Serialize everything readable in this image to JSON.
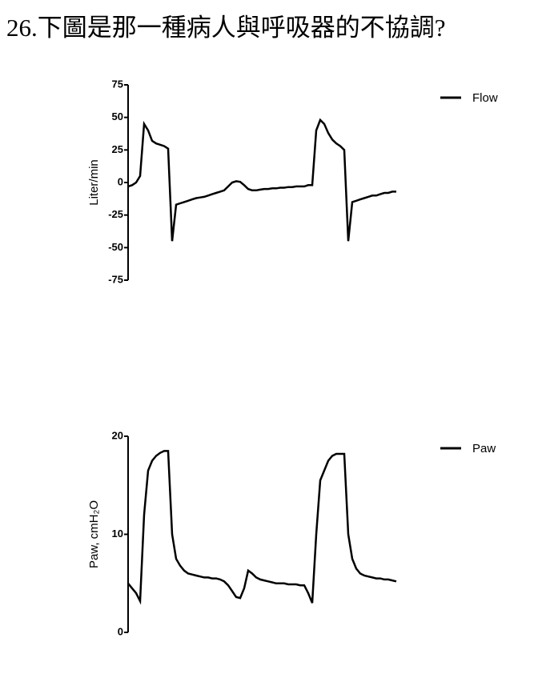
{
  "title": "26.下圖是那一種病人與呼吸器的不協調?",
  "chart_data": [
    {
      "type": "line",
      "y_label": "Liter/min",
      "ylim": [
        -75,
        75
      ],
      "yticks": [
        75,
        50,
        25,
        0,
        -25,
        -50,
        -75
      ],
      "series": [
        {
          "name": "Flow",
          "color": "#000000",
          "values": [
            -3,
            -2,
            0,
            5,
            45,
            40,
            32,
            30,
            29,
            28,
            26,
            -45,
            -17,
            -16,
            -15,
            -14,
            -13,
            -12,
            -11.5,
            -11,
            -10,
            -9,
            -8,
            -7,
            -6,
            -3,
            0,
            1,
            0.5,
            -2,
            -5,
            -6,
            -6,
            -5.5,
            -5,
            -5,
            -4.5,
            -4.5,
            -4,
            -4,
            -3.5,
            -3.5,
            -3,
            -3,
            -3,
            -2,
            -2,
            40,
            48,
            45,
            38,
            33,
            30,
            28,
            25,
            -45,
            -15,
            -14,
            -13,
            -12,
            -11,
            -10,
            -10,
            -9,
            -8,
            -8,
            -7,
            -7
          ]
        }
      ]
    },
    {
      "type": "line",
      "y_label": "Paw, cmH₂O",
      "ylim": [
        0,
        20
      ],
      "yticks": [
        20,
        10,
        0
      ],
      "series": [
        {
          "name": "Paw",
          "color": "#000000",
          "values": [
            5,
            4.5,
            4,
            3.2,
            12,
            16.5,
            17.5,
            18,
            18.3,
            18.5,
            18.5,
            10,
            7.5,
            6.8,
            6.3,
            6,
            5.9,
            5.8,
            5.7,
            5.6,
            5.6,
            5.5,
            5.5,
            5.4,
            5.2,
            4.8,
            4.2,
            3.6,
            3.5,
            4.5,
            6.3,
            6,
            5.6,
            5.4,
            5.3,
            5.2,
            5.1,
            5,
            5,
            5,
            4.9,
            4.9,
            4.9,
            4.8,
            4.8,
            4,
            3,
            10,
            15.5,
            16.5,
            17.5,
            18,
            18.2,
            18.2,
            18.2,
            10,
            7.5,
            6.5,
            6,
            5.8,
            5.7,
            5.6,
            5.5,
            5.5,
            5.4,
            5.4,
            5.3,
            5.2
          ]
        }
      ]
    }
  ]
}
